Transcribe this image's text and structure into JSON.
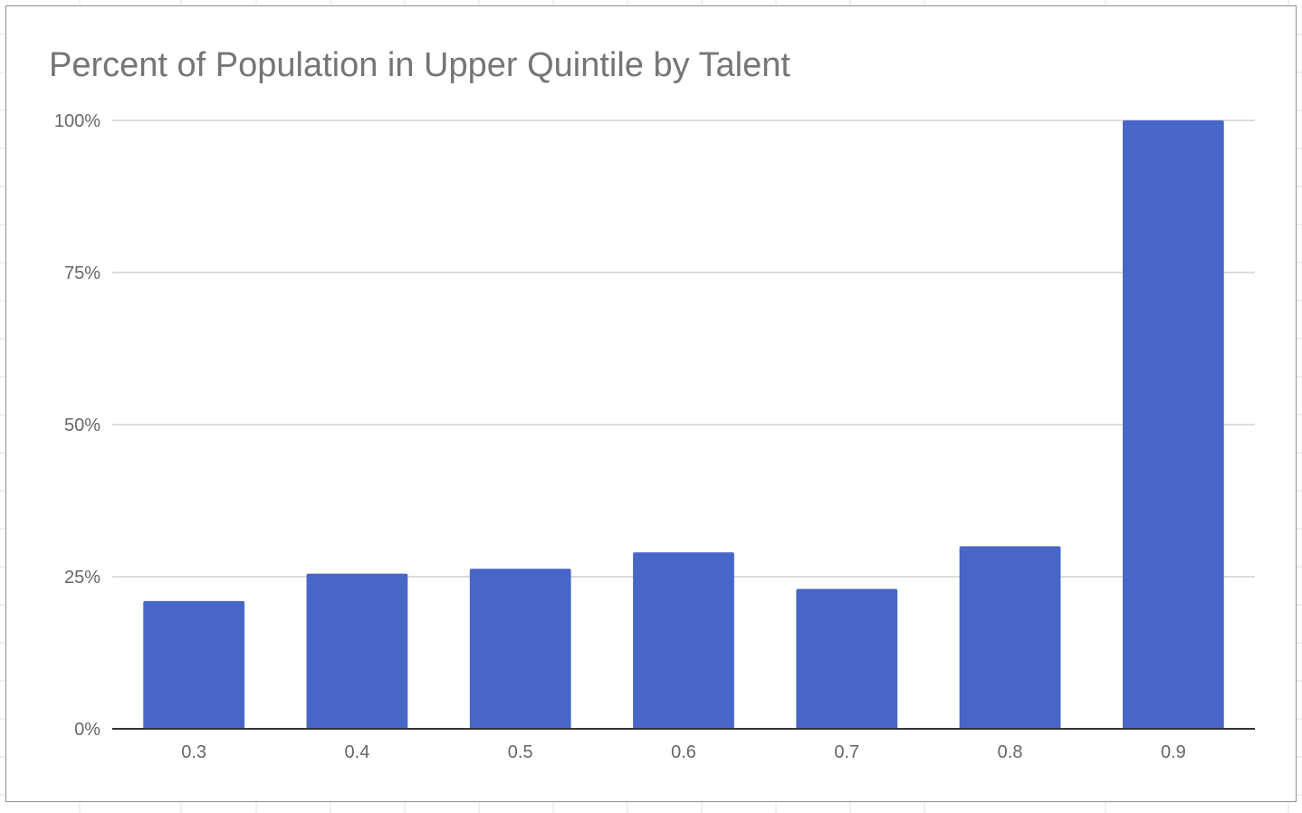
{
  "colors": {
    "bar": "#4866c8",
    "gridline": "#d0d0d0",
    "baseline": "#333333",
    "text": "#666666",
    "title": "#757575"
  },
  "chart_data": {
    "type": "bar",
    "title": "Percent of Population in Upper Quintile by Talent",
    "xlabel": "",
    "ylabel": "",
    "categories": [
      "0.3",
      "0.4",
      "0.5",
      "0.6",
      "0.7",
      "0.8",
      "0.9"
    ],
    "values": [
      21,
      25.5,
      26.3,
      29,
      23,
      30,
      100
    ],
    "ylim": [
      0,
      100
    ],
    "yticks": [
      0,
      25,
      50,
      75,
      100
    ],
    "ytick_labels": [
      "0%",
      "25%",
      "50%",
      "75%",
      "100%"
    ],
    "grid": true,
    "legend": "none"
  }
}
